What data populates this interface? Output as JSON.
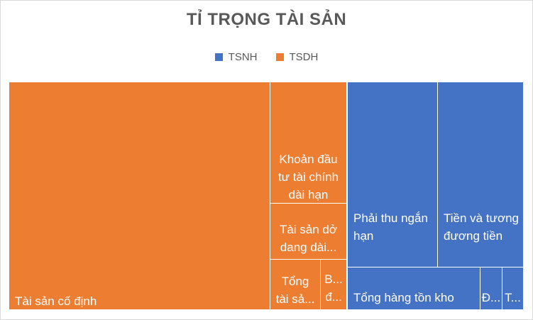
{
  "colors": {
    "TSNH": "#4472c4",
    "TSDH": "#ed7d31",
    "title": "#595959"
  },
  "chart_data": {
    "type": "treemap",
    "title": "TỈ TRỌNG TÀI SẢN",
    "legend": {
      "placement": "top-center",
      "entries": [
        {
          "key": "TSNH",
          "label": "TSNH"
        },
        {
          "key": "TSDH",
          "label": "TSDH"
        }
      ]
    },
    "nodes": [
      {
        "label": "Tài sản cố định",
        "group": "TSDH",
        "value": 43.7
      },
      {
        "label": "Khoản đầu tư tài chính dài hạn",
        "group": "TSDH",
        "value": 7.2,
        "lines": [
          "Khoản đầu",
          "tư tài chính",
          "dài hạn"
        ]
      },
      {
        "label": "Tài sản dở dang dài...",
        "group": "TSDH",
        "value": 4.3,
        "lines": [
          "Tài sản dở",
          "dang dài..."
        ]
      },
      {
        "label": "Tổng tài sả...",
        "group": "TSDH",
        "value": 2.5,
        "lines": [
          "Tổng",
          "tài sả..."
        ]
      },
      {
        "label": "B... đ...",
        "group": "TSDH",
        "value": 1.2,
        "lines": [
          "B...",
          "đ..."
        ]
      },
      {
        "label": "Phải thu ngắn hạn",
        "group": "TSNH",
        "value": 14.8,
        "lines": [
          "Phải thu ngắn",
          "hạn"
        ]
      },
      {
        "label": "Tiền và tương đương tiền",
        "group": "TSNH",
        "value": 14.7,
        "lines": [
          "Tiền và tương",
          "đương tiền"
        ]
      },
      {
        "label": "Tổng hàng tồn kho",
        "group": "TSNH",
        "value": 9.3
      },
      {
        "label": "Đ...",
        "group": "TSNH",
        "value": 1.4
      },
      {
        "label": "T...",
        "group": "TSNH",
        "value": 1.0
      }
    ]
  }
}
